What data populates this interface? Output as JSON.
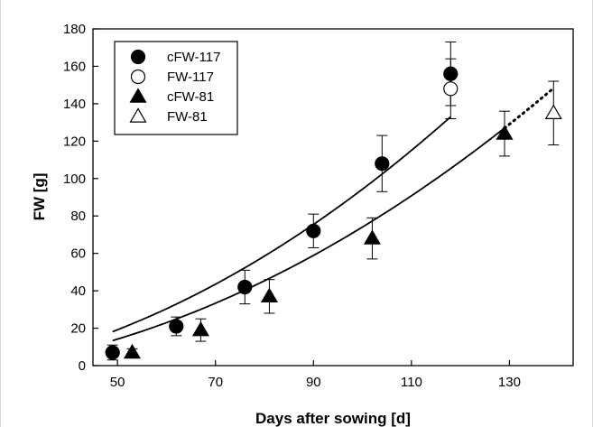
{
  "chart_data": {
    "type": "scatter",
    "xlabel": "Days after sowing [d]",
    "ylabel": "FW [g]",
    "xlim": [
      45,
      143
    ],
    "ylim": [
      0,
      180
    ],
    "xticks": [
      50,
      70,
      90,
      110,
      130
    ],
    "yticks": [
      0,
      20,
      40,
      60,
      80,
      100,
      120,
      140,
      160,
      180
    ],
    "grid": false,
    "legend_position": "top-left",
    "series": [
      {
        "name": "cFW-117",
        "marker": "circle",
        "filled": true,
        "points": [
          {
            "x": 49,
            "y": 7,
            "err": 4
          },
          {
            "x": 62,
            "y": 21,
            "err": 5
          },
          {
            "x": 76,
            "y": 42,
            "err": 9
          },
          {
            "x": 90,
            "y": 72,
            "err": 9
          },
          {
            "x": 104,
            "y": 108,
            "err": 15
          },
          {
            "x": 118,
            "y": 156,
            "err": 17
          }
        ],
        "fit": {
          "coef": [
            -8.436,
            0.0765,
            0.00951
          ],
          "from": 49,
          "to": 118,
          "dotted_to": null
        }
      },
      {
        "name": "FW-117",
        "marker": "circle",
        "filled": false,
        "points": [
          {
            "x": 118,
            "y": 148,
            "err": 16
          }
        ]
      },
      {
        "name": "cFW-81",
        "marker": "triangle",
        "filled": true,
        "points": [
          {
            "x": 53,
            "y": 7,
            "err": 2
          },
          {
            "x": 67,
            "y": 19,
            "err": 6
          },
          {
            "x": 81,
            "y": 37,
            "err": 9
          },
          {
            "x": 102,
            "y": 68,
            "err": 11
          },
          {
            "x": 129,
            "y": 124,
            "err": 12
          }
        ],
        "fit": {
          "coef": [
            -6.11,
            0.00873,
            0.00793
          ],
          "from": 49,
          "to": 129,
          "dotted_to": 139
        }
      },
      {
        "name": "FW-81",
        "marker": "triangle",
        "filled": false,
        "points": [
          {
            "x": 139,
            "y": 135,
            "err": 17
          }
        ]
      }
    ]
  }
}
